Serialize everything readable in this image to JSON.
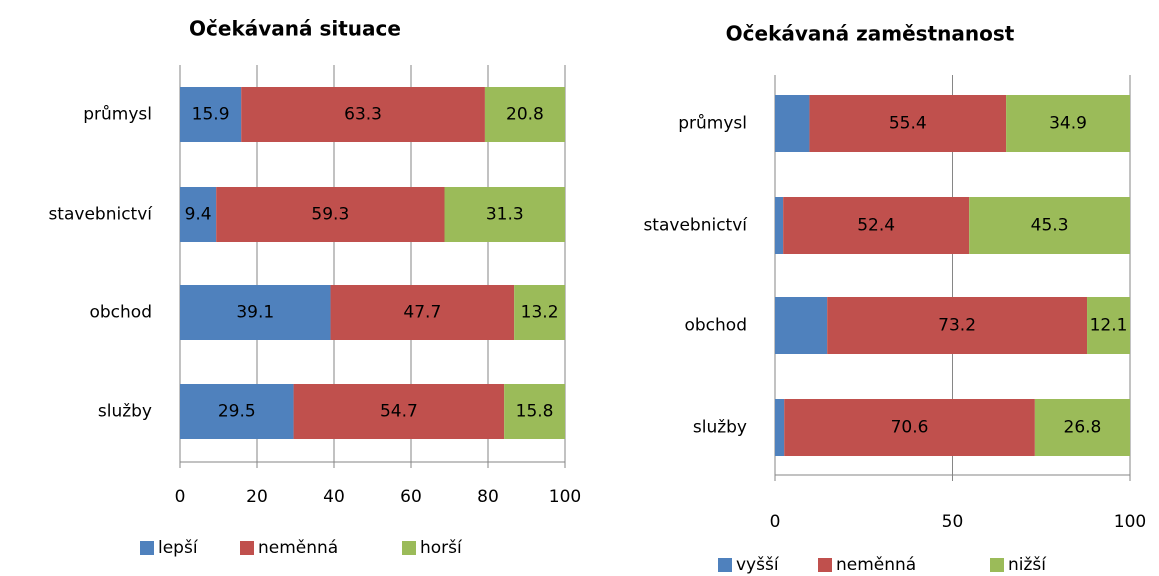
{
  "chart_data": [
    {
      "type": "bar",
      "orientation": "horizontal",
      "stacked": true,
      "title": "Očekávaná situace",
      "categories": [
        "průmysl",
        "stavebnictví",
        "obchod",
        "služby"
      ],
      "series": [
        {
          "name": "lepší",
          "color": "#4f81bd",
          "values": [
            15.9,
            9.4,
            39.1,
            29.5
          ]
        },
        {
          "name": "neměnná",
          "color": "#c0504d",
          "values": [
            63.3,
            59.3,
            47.7,
            54.7
          ]
        },
        {
          "name": "horší",
          "color": "#9bbb59",
          "values": [
            20.8,
            31.3,
            13.2,
            15.8
          ]
        }
      ],
      "xlim": [
        0,
        100
      ],
      "xticks": [
        0,
        20,
        40,
        60,
        80,
        100
      ],
      "grid": true,
      "legend": "bottom"
    },
    {
      "type": "bar",
      "orientation": "horizontal",
      "stacked": true,
      "title": "Očekávaná zaměstnanost",
      "categories": [
        "průmysl",
        "stavebnictví",
        "obchod",
        "služby"
      ],
      "series": [
        {
          "name": "vyšší",
          "color": "#4f81bd",
          "values": [
            9.7,
            2.3,
            14.7,
            2.6
          ],
          "data_labels": false
        },
        {
          "name": "neměnná",
          "color": "#c0504d",
          "values": [
            55.4,
            52.4,
            73.2,
            70.6
          ]
        },
        {
          "name": "nižší",
          "color": "#9bbb59",
          "values": [
            34.9,
            45.3,
            12.1,
            26.8
          ]
        }
      ],
      "xlim": [
        0,
        100
      ],
      "xticks": [
        0,
        50,
        100
      ],
      "grid": true,
      "legend": "bottom"
    }
  ]
}
